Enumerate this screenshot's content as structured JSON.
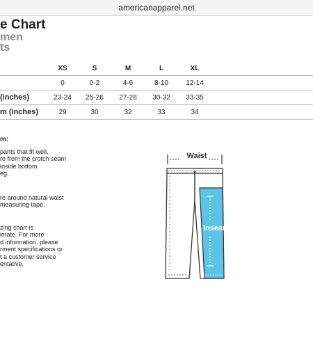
{
  "header": {
    "domain": "americanapparel.net"
  },
  "title": {
    "line1": "e Chart",
    "line2": "men",
    "line3": "ts"
  },
  "table": {
    "columns": [
      "",
      "XS",
      "S",
      "M",
      "L",
      "XL",
      "",
      "",
      "",
      ""
    ],
    "rows": [
      {
        "label": "",
        "values": [
          "0",
          "0-2",
          "4-6",
          "8-10",
          "12-14",
          "",
          "",
          "",
          ""
        ]
      },
      {
        "label": "(inches)",
        "values": [
          "23-24",
          "25-26",
          "27-28",
          "30-32",
          "33-35",
          "",
          "",
          "",
          ""
        ]
      },
      {
        "label": "m (inches)",
        "values": [
          "29",
          "30",
          "32",
          "33",
          "34",
          "",
          "",
          "",
          ""
        ]
      }
    ]
  },
  "notes": {
    "heading": "m:",
    "p1": "pants that fit well,\nre from the crotch seam\ninside bottom\neg.",
    "p2": "re around natural waist\nmeasuring tape.",
    "p3": "zing chart is\nimate. For more\nd information, please\nrment specifications or\nt a customer service\nentative."
  },
  "diagram": {
    "waist_label": "Waist",
    "inseam_label": "Inseam",
    "highlight_color": "#5bc4e6"
  }
}
